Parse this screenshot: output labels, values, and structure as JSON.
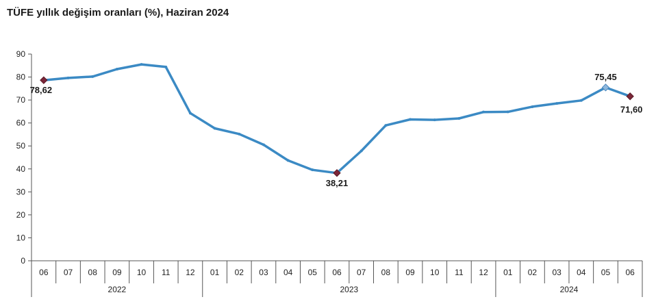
{
  "chart_data": {
    "type": "line",
    "title": "TÜFE yıllık değişim oranları (%), Haziran 2024",
    "xlabel": "",
    "ylabel": "",
    "ylim": [
      0,
      90
    ],
    "yticks": [
      "0",
      "10",
      "20",
      "30",
      "40",
      "50",
      "60",
      "70",
      "80",
      "90"
    ],
    "grid": false,
    "legend": "none",
    "line_color": "#3b8ac4",
    "marker_color": "#7b2638",
    "categories": [
      "06",
      "07",
      "08",
      "09",
      "10",
      "11",
      "12",
      "01",
      "02",
      "03",
      "04",
      "05",
      "06",
      "07",
      "08",
      "09",
      "10",
      "11",
      "12",
      "01",
      "02",
      "03",
      "04",
      "05",
      "06"
    ],
    "years": [
      {
        "label": "2022",
        "start": 0,
        "end": 6
      },
      {
        "label": "2023",
        "start": 7,
        "end": 18
      },
      {
        "label": "2024",
        "start": 19,
        "end": 24
      }
    ],
    "series": [
      {
        "values": [
          78.62,
          79.6,
          80.21,
          83.45,
          85.51,
          84.39,
          64.27,
          57.68,
          55.18,
          50.51,
          43.68,
          39.59,
          38.21,
          47.83,
          58.94,
          61.53,
          61.36,
          61.98,
          64.77,
          64.86,
          67.07,
          68.5,
          69.8,
          75.45,
          71.6
        ]
      }
    ],
    "annotations": [
      {
        "index": 0,
        "label": "78,62",
        "marker": "diamond-dark",
        "pos": "below"
      },
      {
        "index": 12,
        "label": "38,21",
        "marker": "diamond-dark",
        "pos": "below"
      },
      {
        "index": 23,
        "label": "75,45",
        "marker": "diamond-light",
        "pos": "above"
      },
      {
        "index": 24,
        "label": "71,60",
        "marker": "diamond-dark",
        "pos": "below-right"
      }
    ]
  }
}
